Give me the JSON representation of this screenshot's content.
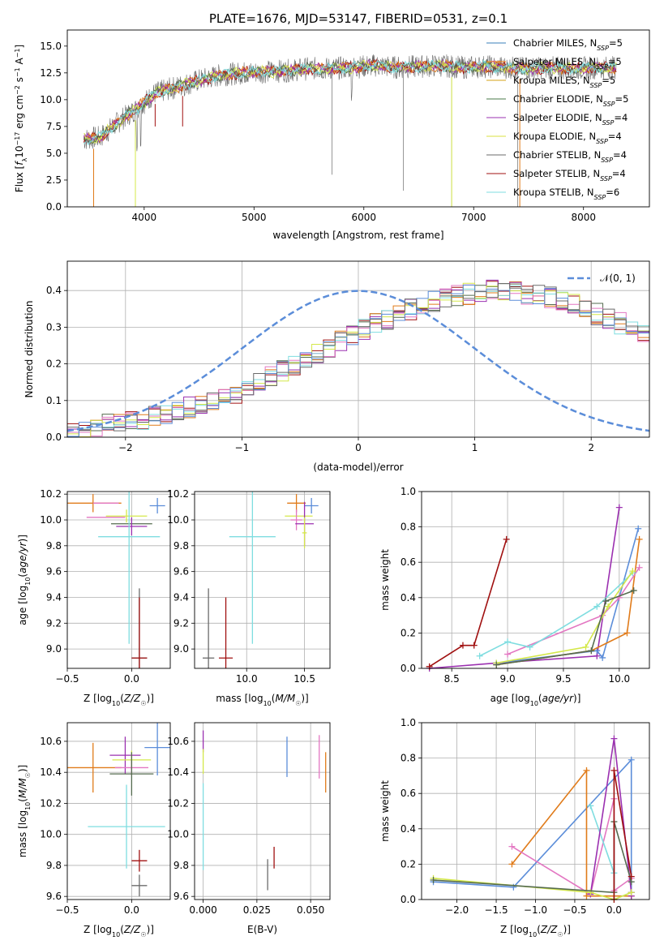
{
  "colors": {
    "chabrier_miles": "#3a7fb8",
    "salpeter_miles": "#ff7f0e",
    "kroupa_miles": "#d4a017",
    "chabrier_elodie": "#4a7a4a",
    "salpeter_elodie": "#9b30b0",
    "kroupa_elodie": "#d8e040",
    "chabrier_stelib": "#6b6b6b",
    "salpeter_stelib": "#a01010",
    "kroupa_stelib": "#7fdde0",
    "normal_curve": "#5b8dd9",
    "pink": "#e377c2",
    "blue": "#5b8dd9",
    "orange": "#e07b1a",
    "purple": "#9b30b0",
    "olive": "#556b4f",
    "darkred": "#a01010",
    "cyan": "#7fdde0",
    "lime": "#d4e84a",
    "grid": "#b0b0b0"
  },
  "chart_data": [
    {
      "id": "spectrum",
      "type": "line",
      "title": "PLATE=1676, MJD=53147, FIBERID=0531, z=0.1",
      "xlabel": "wavelength [Angstrom, rest frame]",
      "ylabel": "Flux [f_λ10^-17 erg cm^-2 s^-1 A^-1]",
      "xlim": [
        3300,
        8600
      ],
      "ylim": [
        0,
        16.5
      ],
      "xticks": [
        "4000",
        "5000",
        "6000",
        "7000",
        "8000"
      ],
      "yticks": [
        "0.0",
        "2.5",
        "5.0",
        "7.5",
        "10.0",
        "12.5",
        "15.0"
      ],
      "legend_position": "top-right",
      "legend": [
        {
          "name": "Chabrier MILES, N_SSP=5",
          "color_key": "chabrier_miles"
        },
        {
          "name": "Salpeter MILES, N_SSP=5",
          "color_key": "salpeter_miles"
        },
        {
          "name": "Kroupa MILES, N_SSP=5",
          "color_key": "kroupa_miles"
        },
        {
          "name": "Chabrier ELODIE, N_SSP=5",
          "color_key": "chabrier_elodie"
        },
        {
          "name": "Salpeter ELODIE, N_SSP=4",
          "color_key": "salpeter_elodie"
        },
        {
          "name": "Kroupa ELODIE, N_SSP=4",
          "color_key": "kroupa_elodie"
        },
        {
          "name": "Chabrier STELIB, N_SSP=4",
          "color_key": "chabrier_stelib"
        },
        {
          "name": "Salpeter STELIB, N_SSP=4",
          "color_key": "salpeter_stelib"
        },
        {
          "name": "Kroupa STELIB, N_SSP=6",
          "color_key": "kroupa_stelib"
        }
      ],
      "continuum": {
        "x": [
          3450,
          3600,
          3800,
          3950,
          4100,
          4300,
          4500,
          4700,
          4900,
          5100,
          5300,
          5500,
          5700,
          5900,
          6100,
          6300,
          6500,
          6700,
          6900,
          7100,
          7300,
          7500,
          7700,
          7900,
          8100,
          8300
        ],
        "y": [
          6.3,
          6.5,
          8.2,
          9.3,
          10.6,
          11.2,
          11.8,
          12.3,
          12.5,
          12.6,
          12.7,
          12.9,
          12.9,
          13.0,
          13.2,
          13.0,
          13.1,
          13.2,
          13.0,
          13.1,
          13.0,
          12.9,
          13.0,
          12.9,
          13.0,
          13.0
        ]
      }
    },
    {
      "id": "residual-histogram",
      "type": "bar",
      "xlabel": "(data-model)/error",
      "ylabel": "Normed distribution",
      "xlim": [
        -2.5,
        2.5
      ],
      "ylim": [
        0,
        0.48
      ],
      "xticks": [
        "−2",
        "−1",
        "0",
        "1",
        "2"
      ],
      "yticks": [
        "0.0",
        "0.1",
        "0.2",
        "0.3",
        "0.4"
      ],
      "grid": true,
      "legend_position": "top-right",
      "legend": [
        {
          "name": "𝒩(0, 1)",
          "color_key": "normal_curve"
        }
      ],
      "bin_width": 0.1,
      "bin_start": -2.5,
      "mean_values": [
        0.02,
        0.025,
        0.03,
        0.035,
        0.04,
        0.045,
        0.05,
        0.06,
        0.065,
        0.075,
        0.08,
        0.09,
        0.1,
        0.11,
        0.12,
        0.135,
        0.15,
        0.165,
        0.18,
        0.195,
        0.21,
        0.23,
        0.245,
        0.26,
        0.28,
        0.295,
        0.31,
        0.32,
        0.335,
        0.35,
        0.36,
        0.37,
        0.38,
        0.385,
        0.39,
        0.395,
        0.4,
        0.4,
        0.395,
        0.39,
        0.385,
        0.38,
        0.37,
        0.36,
        0.35,
        0.335,
        0.32,
        0.31,
        0.295,
        0.28
      ]
    },
    {
      "id": "age-vs-z",
      "type": "scatter",
      "xlabel": "Z [log10(Z/Z☉)]",
      "ylabel": "age [log10(age/yr)]",
      "xlim": [
        -0.5,
        0.3
      ],
      "ylim": [
        8.85,
        10.22
      ],
      "xticks": [
        "−0.5",
        "0.0"
      ],
      "yticks": [
        "9.0",
        "9.2",
        "9.4",
        "9.6",
        "9.8",
        "10.0",
        "10.2"
      ],
      "grid": true,
      "points": [
        {
          "x": -0.3,
          "y": 10.13,
          "xerr": 0.22,
          "yerr": 0.07,
          "color_key": "orange"
        },
        {
          "x": -0.2,
          "y": 10.13,
          "xerr": 0.1,
          "yerr": 0.0,
          "color_key": "pink"
        },
        {
          "x": 0.2,
          "y": 10.11,
          "xerr": 0.06,
          "yerr": 0.06,
          "color_key": "blue"
        },
        {
          "x": -0.04,
          "y": 10.03,
          "xerr": 0.16,
          "yerr": 0.05,
          "color_key": "lime"
        },
        {
          "x": -0.2,
          "y": 10.02,
          "xerr": 0.15,
          "yerr": 0.0,
          "color_key": "pink"
        },
        {
          "x": 0.0,
          "y": 9.97,
          "xerr": 0.16,
          "yerr": 0.0,
          "color_key": "olive"
        },
        {
          "x": 0.0,
          "y": 9.95,
          "xerr": 0.12,
          "yerr": 0.07,
          "color_key": "purple"
        },
        {
          "x": -0.02,
          "y": 9.87,
          "xerr": 0.24,
          "yerr": 0.83,
          "color_key": "cyan"
        },
        {
          "x": 0.06,
          "y": 8.93,
          "xerr": 0.06,
          "yerr": 0.54,
          "color_key": "chabrier_stelib"
        },
        {
          "x": 0.06,
          "y": 8.93,
          "xerr": 0.06,
          "yerr": 0.47,
          "color_key": "darkred"
        }
      ]
    },
    {
      "id": "age-vs-mass",
      "type": "scatter",
      "xlabel": "mass [log10(M/M☉)]",
      "ylabel": "",
      "xlim": [
        9.55,
        10.72
      ],
      "ylim": [
        8.85,
        10.22
      ],
      "xticks": [
        "10.0",
        "10.5"
      ],
      "yticks": [
        "9.0",
        "9.2",
        "9.4",
        "9.6",
        "9.8",
        "10.0",
        "10.2"
      ],
      "grid": true,
      "points": [
        {
          "x": 10.43,
          "y": 10.13,
          "xerr": 0.08,
          "yerr": 0.07,
          "color_key": "orange"
        },
        {
          "x": 10.56,
          "y": 10.11,
          "xerr": 0.06,
          "yerr": 0.06,
          "color_key": "blue"
        },
        {
          "x": 10.45,
          "y": 10.03,
          "xerr": 0.12,
          "yerr": 0.0,
          "color_key": "lime"
        },
        {
          "x": 10.43,
          "y": 10.0,
          "xerr": 0.05,
          "yerr": 0.08,
          "color_key": "pink"
        },
        {
          "x": 10.5,
          "y": 9.97,
          "xerr": 0.08,
          "yerr": 0.17,
          "color_key": "purple"
        },
        {
          "x": 10.5,
          "y": 9.9,
          "xerr": 0.02,
          "yerr": 0.12,
          "color_key": "lime"
        },
        {
          "x": 10.05,
          "y": 9.87,
          "xerr": 0.2,
          "yerr": 0.83,
          "color_key": "cyan"
        },
        {
          "x": 9.67,
          "y": 8.93,
          "xerr": 0.05,
          "yerr": 0.54,
          "color_key": "chabrier_stelib"
        },
        {
          "x": 9.82,
          "y": 8.93,
          "xerr": 0.06,
          "yerr": 0.47,
          "color_key": "darkred"
        }
      ]
    },
    {
      "id": "massweight-vs-age",
      "type": "line",
      "xlabel": "age [log10(age/yr)]",
      "ylabel": "mass weight",
      "xlim": [
        8.23,
        10.27
      ],
      "ylim": [
        0,
        1.0
      ],
      "xticks": [
        "8.5",
        "9.0",
        "9.5",
        "10.0"
      ],
      "yticks": [
        "0.0",
        "0.2",
        "0.4",
        "0.6",
        "0.8",
        "1.0"
      ],
      "grid": true,
      "series": [
        {
          "color_key": "purple",
          "x": [
            8.3,
            8.9,
            9.8,
            10.0
          ],
          "y": [
            0.0,
            0.03,
            0.07,
            0.91
          ]
        },
        {
          "color_key": "blue",
          "x": [
            8.9,
            9.8,
            9.85,
            10.17
          ],
          "y": [
            0.03,
            0.1,
            0.06,
            0.79
          ]
        },
        {
          "color_key": "orange",
          "x": [
            8.9,
            9.75,
            10.07,
            10.18
          ],
          "y": [
            0.02,
            0.1,
            0.2,
            0.73
          ]
        },
        {
          "color_key": "pink",
          "x": [
            9.0,
            9.85,
            10.0,
            10.18
          ],
          "y": [
            0.08,
            0.3,
            0.4,
            0.57
          ]
        },
        {
          "color_key": "cyan",
          "x": [
            8.75,
            9.0,
            9.2,
            9.8,
            10.12
          ],
          "y": [
            0.07,
            0.15,
            0.12,
            0.35,
            0.54
          ]
        },
        {
          "color_key": "lime",
          "x": [
            8.9,
            9.7,
            9.9,
            10.12
          ],
          "y": [
            0.03,
            0.12,
            0.35,
            0.55
          ]
        },
        {
          "color_key": "olive",
          "x": [
            8.9,
            9.75,
            9.88,
            10.13
          ],
          "y": [
            0.02,
            0.1,
            0.38,
            0.44
          ]
        },
        {
          "color_key": "darkred",
          "x": [
            8.3,
            8.6,
            8.7,
            8.99
          ],
          "y": [
            0.01,
            0.13,
            0.13,
            0.73
          ]
        }
      ]
    },
    {
      "id": "mass-vs-z",
      "type": "scatter",
      "xlabel": "Z [log10(Z/Z☉)]",
      "ylabel": "mass [log10(M/M☉)]",
      "xlim": [
        -0.5,
        0.3
      ],
      "ylim": [
        9.58,
        10.72
      ],
      "xticks": [
        "−0.5",
        "0.0"
      ],
      "yticks": [
        "9.6",
        "9.8",
        "10.0",
        "10.2",
        "10.4",
        "10.6"
      ],
      "grid": true,
      "points": [
        {
          "x": 0.2,
          "y": 10.56,
          "xerr": 0.1,
          "yerr": 0.18,
          "color_key": "blue"
        },
        {
          "x": -0.05,
          "y": 10.51,
          "xerr": 0.12,
          "yerr": 0.12,
          "color_key": "purple"
        },
        {
          "x": 0.0,
          "y": 10.48,
          "xerr": 0.15,
          "yerr": 0.06,
          "color_key": "lime"
        },
        {
          "x": -0.3,
          "y": 10.43,
          "xerr": 0.22,
          "yerr": 0.16,
          "color_key": "orange"
        },
        {
          "x": 0.0,
          "y": 10.43,
          "xerr": 0.13,
          "yerr": 0.05,
          "color_key": "pink"
        },
        {
          "x": 0.0,
          "y": 10.39,
          "xerr": 0.17,
          "yerr": 0.14,
          "color_key": "olive"
        },
        {
          "x": -0.04,
          "y": 10.05,
          "xerr": 0.3,
          "yerr": 0.27,
          "color_key": "cyan"
        },
        {
          "x": 0.06,
          "y": 9.83,
          "xerr": 0.06,
          "yerr": 0.07,
          "color_key": "darkred"
        },
        {
          "x": 0.06,
          "y": 9.67,
          "xerr": 0.06,
          "yerr": 0.07,
          "color_key": "chabrier_stelib"
        }
      ]
    },
    {
      "id": "mass-vs-ebv",
      "type": "scatter",
      "xlabel": "E(B-V)",
      "ylabel": "",
      "xlim": [
        -0.004,
        0.059
      ],
      "ylim": [
        9.58,
        10.72
      ],
      "xticks": [
        "0.000",
        "0.025",
        "0.050"
      ],
      "yticks": [
        "9.6",
        "9.8",
        "10.0",
        "10.2",
        "10.4",
        "10.6"
      ],
      "grid": true,
      "points": [
        {
          "x": 0.0,
          "y": 10.6,
          "xerr": 0,
          "yerr": 0.07,
          "color_key": "purple"
        },
        {
          "x": 0.0,
          "y": 10.47,
          "xerr": 0,
          "yerr": 0.08,
          "color_key": "lime"
        },
        {
          "x": 0.0,
          "y": 10.05,
          "xerr": 0,
          "yerr": 0.28,
          "color_key": "cyan"
        },
        {
          "x": 0.039,
          "y": 10.5,
          "xerr": 0,
          "yerr": 0.13,
          "color_key": "blue"
        },
        {
          "x": 0.054,
          "y": 10.5,
          "xerr": 0,
          "yerr": 0.14,
          "color_key": "pink"
        },
        {
          "x": 0.057,
          "y": 10.4,
          "xerr": 0,
          "yerr": 0.13,
          "color_key": "orange"
        },
        {
          "x": 0.03,
          "y": 9.74,
          "xerr": 0,
          "yerr": 0.1,
          "color_key": "chabrier_stelib"
        },
        {
          "x": 0.033,
          "y": 9.85,
          "xerr": 0,
          "yerr": 0.07,
          "color_key": "darkred"
        }
      ]
    },
    {
      "id": "massweight-vs-z",
      "type": "line",
      "xlabel": "Z [log10(Z/Z☉)]",
      "ylabel": "mass weight",
      "xlim": [
        -2.45,
        0.45
      ],
      "ylim": [
        0,
        1.0
      ],
      "xticks": [
        "−2.0",
        "−1.5",
        "−1.0",
        "−0.5",
        "0.0"
      ],
      "yticks": [
        "0.0",
        "0.2",
        "0.4",
        "0.6",
        "0.8",
        "1.0"
      ],
      "grid": true,
      "series": [
        {
          "color_key": "blue",
          "x": [
            -2.3,
            -1.28,
            0.22,
            0.22
          ],
          "y": [
            0.1,
            0.07,
            0.79,
            0.04
          ]
        },
        {
          "color_key": "orange",
          "x": [
            -1.3,
            -0.35,
            -0.35,
            0.22
          ],
          "y": [
            0.2,
            0.73,
            0.02,
            0.02
          ]
        },
        {
          "color_key": "pink",
          "x": [
            -1.3,
            -0.3,
            0.0,
            0.0,
            0.22
          ],
          "y": [
            0.3,
            0.03,
            0.57,
            0.05,
            0.12
          ]
        },
        {
          "color_key": "cyan",
          "x": [
            -0.3,
            0.0,
            0.0,
            0.22
          ],
          "y": [
            0.53,
            0.15,
            0.0,
            0.04
          ]
        },
        {
          "color_key": "purple",
          "x": [
            -0.3,
            0.0,
            0.22,
            0.22
          ],
          "y": [
            0.03,
            0.91,
            0.04,
            0.02
          ]
        },
        {
          "color_key": "lime",
          "x": [
            -2.3,
            -0.3,
            0.0,
            0.22
          ],
          "y": [
            0.12,
            0.04,
            0.0,
            0.04
          ]
        },
        {
          "color_key": "olive",
          "x": [
            -2.3,
            0.0,
            0.0,
            0.22
          ],
          "y": [
            0.11,
            0.04,
            0.44,
            0.1
          ]
        },
        {
          "color_key": "darkred",
          "x": [
            0.0,
            0.0,
            0.22
          ],
          "y": [
            0.0,
            0.73,
            0.13
          ]
        }
      ]
    }
  ]
}
